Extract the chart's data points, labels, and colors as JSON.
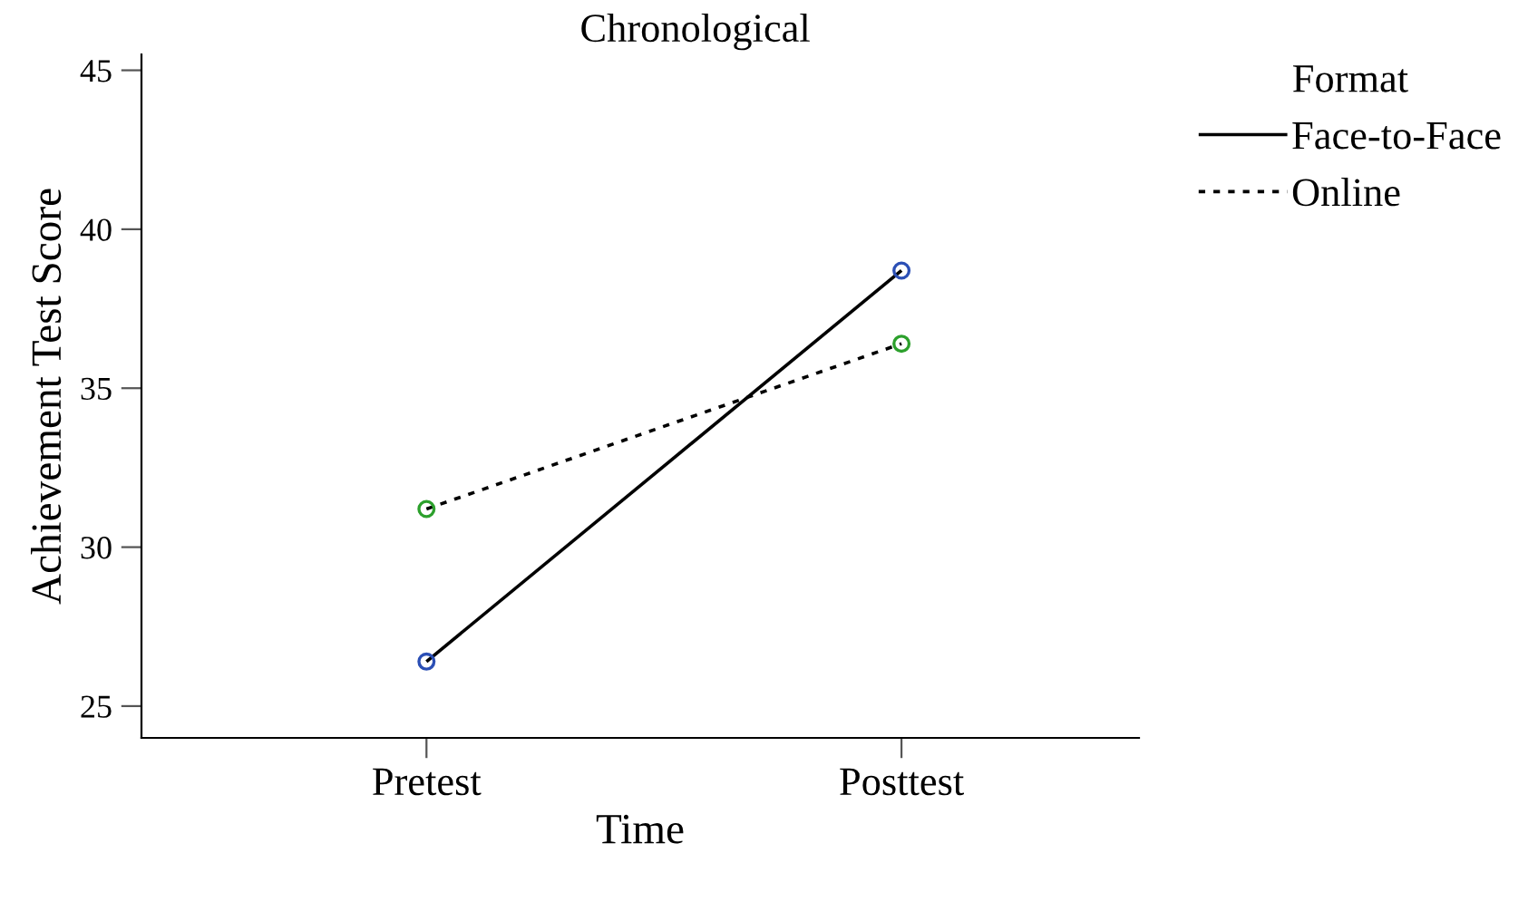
{
  "chart_data": {
    "type": "line",
    "title": "Chronological",
    "xlabel": "Time",
    "ylabel": "Achievement Test Score",
    "legend_title": "Format",
    "categories": [
      "Pretest",
      "Posttest"
    ],
    "series": [
      {
        "name": "Face-to-Face",
        "color": "#000000",
        "colors": [
          "#2b4fb5",
          "#2b4fb5"
        ],
        "line_style": "solid",
        "values": [
          26.4,
          38.7
        ]
      },
      {
        "name": "Online",
        "color": "#000000",
        "colors": [
          "#2ca02c",
          "#2ca02c"
        ],
        "line_style": "dotted",
        "values": [
          31.2,
          36.4
        ]
      }
    ],
    "ylim": [
      24,
      45.5
    ],
    "yticks": [
      25,
      30,
      35,
      40,
      45
    ],
    "marker": "circle",
    "grid": false,
    "legend": "top right"
  }
}
